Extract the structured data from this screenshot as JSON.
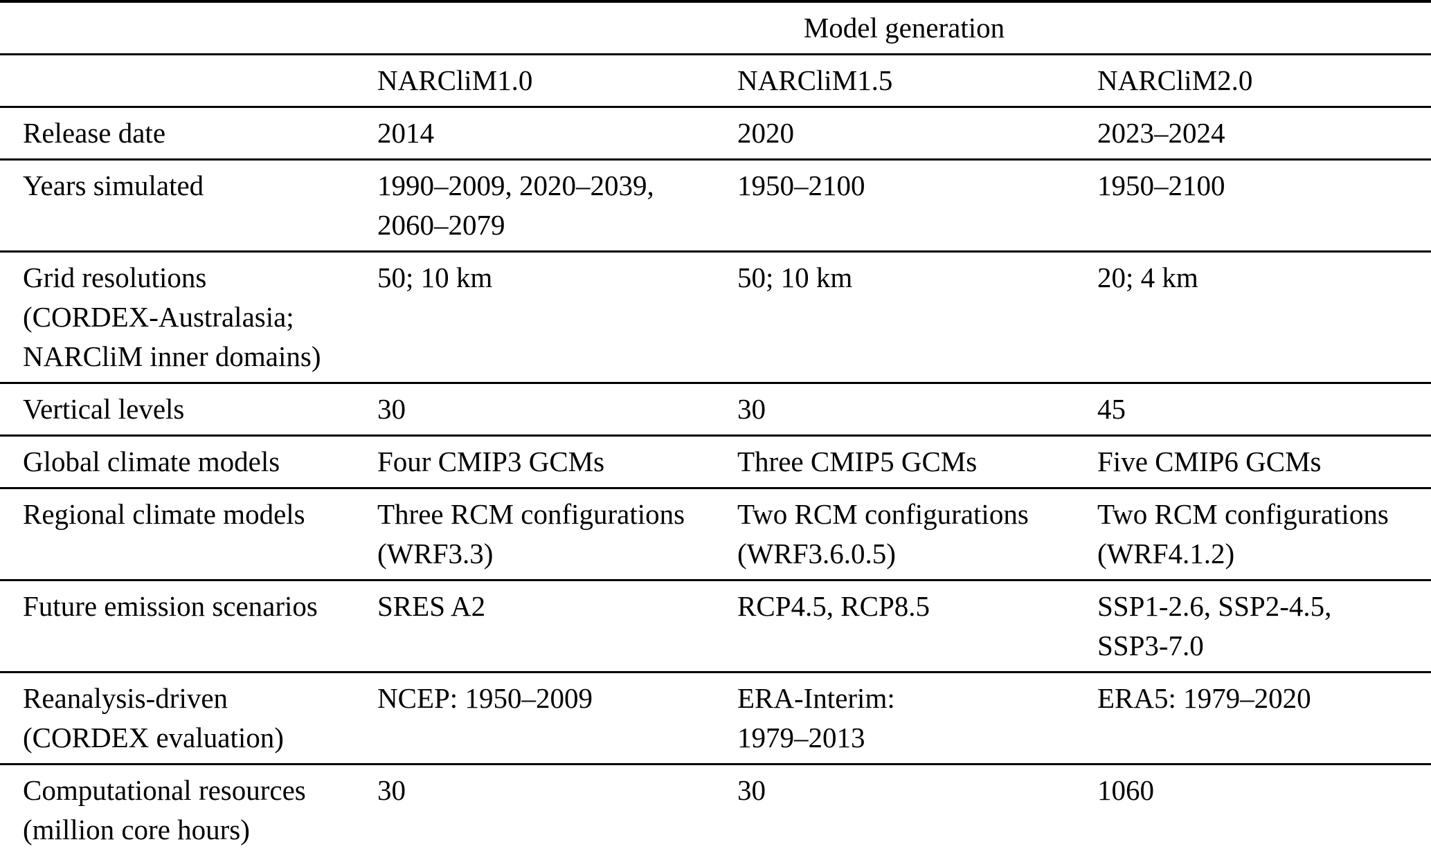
{
  "table": {
    "title": "Model generation",
    "columns": [
      "NARCliM1.0",
      "NARCliM1.5",
      "NARCliM2.0"
    ],
    "rows": [
      {
        "label": [
          "Release date"
        ],
        "values": [
          [
            "2014"
          ],
          [
            "2020"
          ],
          [
            "2023–2024"
          ]
        ]
      },
      {
        "label": [
          "Years simulated"
        ],
        "values": [
          [
            "1990–2009, 2020–2039,",
            "2060–2079"
          ],
          [
            "1950–2100"
          ],
          [
            "1950–2100"
          ]
        ]
      },
      {
        "label": [
          "Grid resolutions",
          "(CORDEX-Australasia;",
          "NARCliM inner domains)"
        ],
        "values": [
          [
            "50; 10 km"
          ],
          [
            "50; 10 km"
          ],
          [
            "20; 4 km"
          ]
        ]
      },
      {
        "label": [
          "Vertical levels"
        ],
        "values": [
          [
            "30"
          ],
          [
            "30"
          ],
          [
            "45"
          ]
        ]
      },
      {
        "label": [
          "Global climate models"
        ],
        "values": [
          [
            "Four CMIP3 GCMs"
          ],
          [
            "Three CMIP5 GCMs"
          ],
          [
            "Five CMIP6 GCMs"
          ]
        ]
      },
      {
        "label": [
          "Regional climate models"
        ],
        "values": [
          [
            "Three RCM configurations",
            "(WRF3.3)"
          ],
          [
            "Two RCM configurations",
            "(WRF3.6.0.5)"
          ],
          [
            "Two RCM configurations",
            "(WRF4.1.2)"
          ]
        ]
      },
      {
        "label": [
          "Future emission scenarios"
        ],
        "values": [
          [
            "SRES A2"
          ],
          [
            "RCP4.5, RCP8.5"
          ],
          [
            "SSP1-2.6, SSP2-4.5,",
            "SSP3-7.0"
          ]
        ]
      },
      {
        "label": [
          "Reanalysis-driven",
          "(CORDEX evaluation)"
        ],
        "values": [
          [
            "NCEP: 1950–2009"
          ],
          [
            "ERA-Interim:",
            "1979–2013"
          ],
          [
            "ERA5: 1979–2020"
          ]
        ]
      },
      {
        "label": [
          "Computational resources",
          "(million core hours)"
        ],
        "values": [
          [
            "30"
          ],
          [
            "30"
          ],
          [
            "1060"
          ]
        ]
      }
    ]
  }
}
